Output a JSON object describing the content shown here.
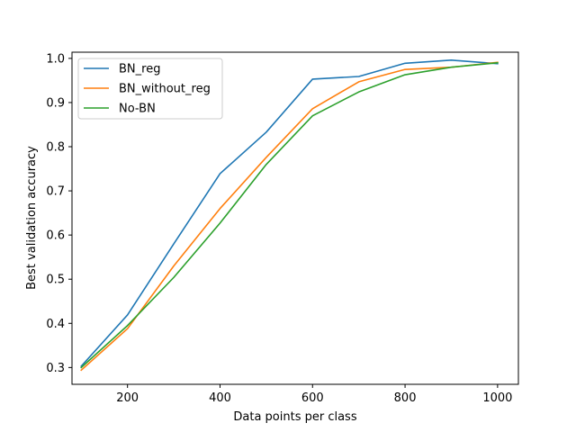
{
  "chart_data": {
    "type": "line",
    "title": "",
    "xlabel": "Data points per class",
    "ylabel": "Best validation accuracy",
    "xlim": [
      80,
      1045
    ],
    "ylim": [
      0.262,
      1.014
    ],
    "xticks": [
      200,
      400,
      600,
      800,
      1000
    ],
    "yticks": [
      0.3,
      0.4,
      0.5,
      0.6,
      0.7,
      0.8,
      0.9,
      1.0
    ],
    "xtick_labels": [
      "200",
      "400",
      "600",
      "800",
      "1000"
    ],
    "ytick_labels": [
      "0.3",
      "0.4",
      "0.5",
      "0.6",
      "0.7",
      "0.8",
      "0.9",
      "1.0"
    ],
    "grid": false,
    "legend_position": "upper-left",
    "x": [
      100,
      200,
      300,
      400,
      500,
      600,
      700,
      800,
      900,
      1000
    ],
    "series": [
      {
        "name": "BN_reg",
        "color": "#1f77b4",
        "values": [
          0.303,
          0.419,
          0.58,
          0.739,
          0.833,
          0.953,
          0.959,
          0.989,
          0.996,
          0.988
        ]
      },
      {
        "name": "BN_without_reg",
        "color": "#ff7f0e",
        "values": [
          0.294,
          0.388,
          0.53,
          0.66,
          0.776,
          0.886,
          0.947,
          0.975,
          0.98,
          0.991
        ]
      },
      {
        "name": "No-BN",
        "color": "#2ca02c",
        "values": [
          0.3,
          0.395,
          0.504,
          0.627,
          0.76,
          0.87,
          0.924,
          0.963,
          0.98,
          0.99
        ]
      }
    ]
  }
}
